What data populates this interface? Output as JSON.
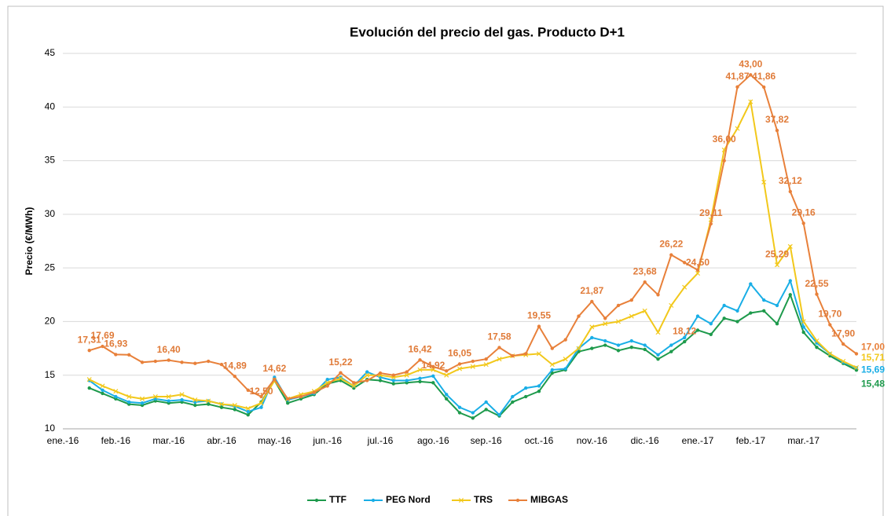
{
  "chart_data": {
    "type": "line",
    "title": "Evolución del precio del gas. Producto D+1",
    "y_label": "Precio (€/MWh)",
    "categories": [
      "ene.-16",
      null,
      null,
      null,
      "feb.-16",
      null,
      null,
      null,
      "mar.-16",
      null,
      null,
      null,
      "abr.-16",
      null,
      null,
      null,
      "may.-16",
      null,
      null,
      null,
      "jun.-16",
      null,
      null,
      null,
      "jul.-16",
      null,
      null,
      null,
      "ago.-16",
      null,
      null,
      null,
      "sep.-16",
      null,
      null,
      null,
      "oct.-16",
      null,
      null,
      null,
      "nov.-16",
      null,
      null,
      null,
      "dic.-16",
      null,
      null,
      null,
      "ene.-17",
      null,
      null,
      null,
      "feb.-17",
      null,
      null,
      null,
      "mar.-17",
      null,
      null,
      null,
      null
    ],
    "ylim": [
      10,
      45
    ],
    "yticks": [
      10,
      15,
      20,
      25,
      30,
      35,
      40,
      45
    ],
    "grid": true,
    "legend": "bottom",
    "label_color": "#e07b39",
    "series": [
      {
        "name": "TTF",
        "color": "#1e9a4c",
        "marker": "circle",
        "values": [
          null,
          null,
          13.8,
          13.3,
          12.8,
          12.3,
          12.2,
          12.6,
          12.4,
          12.5,
          12.2,
          12.3,
          12.0,
          11.8,
          11.3,
          12.5,
          14.5,
          12.4,
          12.8,
          13.2,
          14.2,
          14.5,
          13.8,
          14.6,
          14.5,
          14.2,
          14.3,
          14.4,
          14.3,
          12.8,
          11.5,
          11.0,
          11.8,
          11.2,
          12.5,
          13.0,
          13.5,
          15.2,
          15.5,
          17.2,
          17.5,
          17.8,
          17.3,
          17.6,
          17.4,
          16.5,
          17.2,
          18.12,
          19.2,
          18.8,
          20.3,
          20.0,
          20.8,
          21.0,
          19.8,
          22.5,
          19.0,
          17.6,
          16.8,
          16.1,
          15.48
        ],
        "value_labels": [
          null,
          null,
          null,
          null,
          null,
          null,
          null,
          null,
          null,
          null,
          null,
          null,
          null,
          null,
          null,
          "12,50",
          null,
          null,
          null,
          null,
          null,
          null,
          null,
          null,
          null,
          null,
          null,
          null,
          null,
          null,
          null,
          null,
          null,
          null,
          null,
          null,
          null,
          null,
          null,
          null,
          null,
          null,
          null,
          null,
          null,
          null,
          null,
          "18,12",
          null,
          null,
          null,
          null,
          null,
          null,
          null,
          null,
          null,
          null,
          null,
          null,
          "15,48"
        ]
      },
      {
        "name": "PEG Nord",
        "color": "#19aee6",
        "marker": "circle",
        "values": [
          null,
          null,
          14.5,
          13.6,
          13.0,
          12.5,
          12.4,
          12.8,
          12.6,
          12.7,
          12.5,
          12.6,
          12.3,
          12.1,
          11.6,
          12.0,
          14.8,
          12.7,
          13.0,
          13.3,
          14.6,
          14.8,
          14.0,
          15.3,
          14.8,
          14.5,
          14.5,
          14.7,
          14.92,
          13.2,
          12.0,
          11.5,
          12.5,
          11.3,
          13.0,
          13.8,
          14.0,
          15.5,
          15.6,
          17.5,
          18.5,
          18.2,
          17.8,
          18.2,
          17.8,
          16.9,
          17.8,
          18.5,
          20.5,
          19.8,
          21.5,
          21.0,
          23.5,
          22.0,
          21.5,
          23.8,
          19.5,
          18.0,
          17.0,
          16.2,
          15.69
        ],
        "value_labels": [
          null,
          null,
          null,
          null,
          null,
          null,
          null,
          null,
          null,
          null,
          null,
          null,
          null,
          null,
          null,
          null,
          null,
          null,
          null,
          null,
          null,
          null,
          null,
          null,
          null,
          null,
          null,
          null,
          "14,92",
          null,
          null,
          null,
          null,
          null,
          null,
          null,
          null,
          null,
          null,
          null,
          null,
          null,
          null,
          null,
          null,
          null,
          null,
          null,
          null,
          null,
          null,
          null,
          null,
          null,
          null,
          null,
          null,
          null,
          null,
          null,
          "15,69"
        ]
      },
      {
        "name": "TRS",
        "color": "#f2c81b",
        "marker": "cross",
        "values": [
          null,
          null,
          14.6,
          14.0,
          13.5,
          13.0,
          12.8,
          13.0,
          13.0,
          13.2,
          12.7,
          12.6,
          12.3,
          12.2,
          11.9,
          12.4,
          14.5,
          12.8,
          13.2,
          13.5,
          14.3,
          14.7,
          14.0,
          15.0,
          15.0,
          14.8,
          15.0,
          15.5,
          15.5,
          15.0,
          15.6,
          15.8,
          16.0,
          16.5,
          16.8,
          16.9,
          17.0,
          16.0,
          16.5,
          17.5,
          19.5,
          19.8,
          20.0,
          20.5,
          21.0,
          19.0,
          21.5,
          23.2,
          24.5,
          29.5,
          36.0,
          38.0,
          40.5,
          33.0,
          25.29,
          27.0,
          20.0,
          18.2,
          17.0,
          16.3,
          15.71
        ],
        "value_labels": [
          null,
          null,
          null,
          null,
          null,
          null,
          null,
          null,
          null,
          null,
          null,
          null,
          null,
          null,
          null,
          null,
          null,
          null,
          null,
          null,
          null,
          null,
          null,
          null,
          null,
          null,
          null,
          null,
          null,
          null,
          null,
          null,
          null,
          null,
          null,
          null,
          null,
          null,
          null,
          null,
          null,
          null,
          null,
          null,
          null,
          null,
          null,
          null,
          "24,50",
          null,
          "36,00",
          null,
          null,
          null,
          "25,29",
          null,
          null,
          null,
          null,
          null,
          "15,71"
        ]
      },
      {
        "name": "MIBGAS",
        "color": "#e8803a",
        "marker": "circle",
        "values": [
          null,
          null,
          17.31,
          17.69,
          16.93,
          16.9,
          16.2,
          16.3,
          16.4,
          16.2,
          16.1,
          16.3,
          16.0,
          14.89,
          13.6,
          13.0,
          14.62,
          12.8,
          13.0,
          13.4,
          14.0,
          15.22,
          14.3,
          14.5,
          15.2,
          15.0,
          15.3,
          16.42,
          15.8,
          15.4,
          16.05,
          16.3,
          16.5,
          17.58,
          16.8,
          17.0,
          19.55,
          17.5,
          18.3,
          20.5,
          21.87,
          20.3,
          21.5,
          22.0,
          23.68,
          22.5,
          26.22,
          25.5,
          24.8,
          29.11,
          35.0,
          41.87,
          43.0,
          41.86,
          37.82,
          32.12,
          29.16,
          22.55,
          19.7,
          17.9,
          17.0
        ],
        "value_labels": [
          null,
          null,
          "17,31",
          "17,69",
          "16,93",
          null,
          null,
          null,
          "16,40",
          null,
          null,
          null,
          null,
          "14,89",
          null,
          null,
          "14,62",
          null,
          null,
          null,
          null,
          "15,22",
          null,
          null,
          null,
          null,
          null,
          "16,42",
          null,
          null,
          "16,05",
          null,
          null,
          "17,58",
          null,
          null,
          "19,55",
          null,
          null,
          null,
          "21,87",
          null,
          null,
          null,
          "23,68",
          null,
          "26,22",
          null,
          null,
          "29,11",
          null,
          "41,87",
          "43,00",
          "41,86",
          "37,82",
          "32,12",
          "29,16",
          "22,55",
          "19,70",
          "17,90",
          "17,00"
        ]
      }
    ]
  }
}
